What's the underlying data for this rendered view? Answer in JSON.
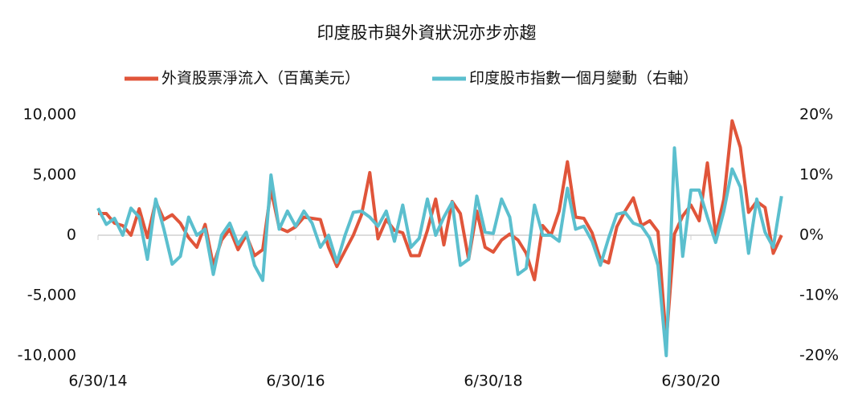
{
  "chart_data": {
    "type": "line",
    "title": "印度股市與外資狀況亦步亦趨",
    "categories": [
      "6/30/14",
      null,
      null,
      null,
      null,
      null,
      null,
      null,
      null,
      null,
      null,
      null,
      null,
      null,
      null,
      null,
      null,
      null,
      null,
      null,
      null,
      null,
      null,
      null,
      "6/30/16",
      null,
      null,
      null,
      null,
      null,
      null,
      null,
      null,
      null,
      null,
      null,
      null,
      null,
      null,
      null,
      null,
      null,
      null,
      null,
      null,
      null,
      null,
      null,
      "6/30/18",
      null,
      null,
      null,
      null,
      null,
      null,
      null,
      null,
      null,
      null,
      null,
      null,
      null,
      null,
      null,
      null,
      null,
      null,
      null,
      null,
      null,
      null,
      null,
      "6/30/20",
      null,
      null,
      null,
      null,
      null,
      null,
      null,
      null,
      null,
      null,
      null
    ],
    "series": [
      {
        "name": "外資股票淨流入（百萬美元）",
        "color": "#e0553a",
        "values": [
          1800,
          1800,
          1000,
          800,
          0,
          2200,
          -200,
          2800,
          1300,
          1700,
          1000,
          -200,
          -1000,
          900,
          -2500,
          -400,
          500,
          -1200,
          0,
          -1700,
          -1200,
          3800,
          600,
          300,
          700,
          1500,
          1400,
          1300,
          -1000,
          -2600,
          -1300,
          0,
          1700,
          5200,
          -300,
          1300,
          400,
          200,
          -1700,
          -1700,
          400,
          3000,
          -800,
          2800,
          1800,
          -2000,
          2000,
          -1000,
          -1400,
          -400,
          100,
          -400,
          -1500,
          -3700,
          800,
          0,
          2000,
          6100,
          1500,
          1400,
          200,
          -2000,
          -2300,
          700,
          2000,
          3100,
          800,
          1200,
          300,
          -8800,
          100,
          1600,
          2500,
          1200,
          6000,
          0,
          3000,
          9500,
          7300,
          1900,
          2800,
          2300,
          -1500,
          0
        ]
      },
      {
        "name": "印度股市指數一個月變動（右軸）",
        "color": "#5bbfce",
        "axis": "y2",
        "values": [
          4.5,
          1.8,
          2.8,
          0,
          4.5,
          3,
          -4,
          6,
          1,
          -4.8,
          -3.5,
          3,
          0,
          1,
          -6.5,
          0,
          2,
          -1.5,
          0.5,
          -5,
          -7.5,
          10,
          1,
          4,
          1.5,
          4,
          2,
          -2,
          0,
          -4.5,
          0,
          3.8,
          4,
          3,
          1.5,
          4,
          -1,
          5,
          -2,
          -0.5,
          6,
          0,
          3,
          5.5,
          -5,
          -4,
          6.5,
          0.5,
          0.3,
          6,
          3,
          -6.5,
          -5.5,
          5,
          0,
          0,
          -1,
          7.8,
          1,
          1.5,
          -1,
          -5,
          -0.5,
          3.5,
          3.8,
          2,
          1.5,
          -0.5,
          -5,
          -20,
          14.5,
          -3.5,
          7.5,
          7.5,
          3,
          -1.2,
          4,
          11,
          8,
          -3,
          6,
          0.5,
          -2,
          6.5
        ]
      }
    ],
    "ylim": [
      -10000,
      10000
    ],
    "yticks": [
      {
        "value": 10000,
        "label": "10,000"
      },
      {
        "value": 5000,
        "label": "5,000"
      },
      0,
      {
        "value": -5000,
        "label": "-5,000"
      },
      {
        "value": -10000,
        "label": "-10,000"
      }
    ],
    "y2lim": [
      -20,
      20
    ],
    "y2ticks": [
      {
        "value": 20,
        "label": "20%"
      },
      {
        "value": 10,
        "label": "10%"
      },
      {
        "value": 0,
        "label": "0%"
      },
      {
        "value": -10,
        "label": "-10%"
      },
      {
        "value": -20,
        "label": "-20%"
      }
    ]
  }
}
